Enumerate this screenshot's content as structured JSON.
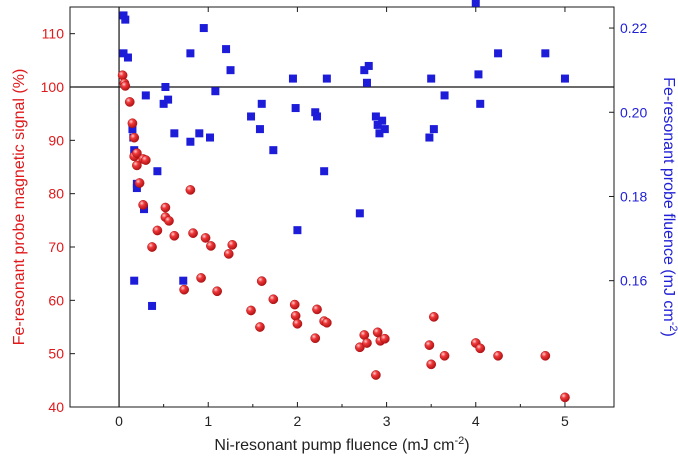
{
  "chart_data": {
    "type": "scatter",
    "title": "",
    "xlabel": "Ni-resonant pump fluence (mJ cm",
    "xlabel_sup": "-2",
    "xlabel_close": ")",
    "ylabel_left": "Fe-resonant probe magnetic signal (%)",
    "ylabel_right": "Fe-resonant probe fluence (mJ cm",
    "ylabel_right_sup": "-2",
    "ylabel_right_close": ")",
    "xlim": [
      -0.55,
      5.55
    ],
    "ylim_left": [
      40,
      115
    ],
    "ylim_right": [
      0.13,
      0.225
    ],
    "x_ticks": [
      0,
      1,
      2,
      3,
      4,
      5
    ],
    "y_left_ticks": [
      40,
      50,
      60,
      70,
      80,
      90,
      100,
      110
    ],
    "y_right_ticks": [
      0.16,
      0.18,
      0.2,
      0.22
    ],
    "y_right_tick_labels": [
      "0.16",
      "0.18",
      "0.20",
      "0.22"
    ],
    "reference_lines": {
      "x": 0,
      "y_left": 100
    },
    "colors": {
      "magnetic": "#e31a1c",
      "fluence": "#1c1cd9",
      "left_axis": "#e0191b",
      "right_axis": "#1f1fd6"
    },
    "series": [
      {
        "axis": "left",
        "marker": "sphere",
        "points": [
          [
            0.04,
            102.2
          ],
          [
            0.06,
            100.7
          ],
          [
            0.07,
            100.2
          ],
          [
            0.12,
            97.2
          ],
          [
            0.15,
            93.2
          ],
          [
            0.17,
            90.5
          ],
          [
            0.17,
            87.0
          ],
          [
            0.2,
            87.6
          ],
          [
            0.2,
            85.3
          ],
          [
            0.23,
            82.0
          ],
          [
            0.27,
            86.5
          ],
          [
            0.3,
            86.3
          ],
          [
            0.27,
            77.9
          ],
          [
            0.37,
            70.0
          ],
          [
            0.43,
            73.1
          ],
          [
            0.52,
            75.6
          ],
          [
            0.52,
            77.4
          ],
          [
            0.56,
            74.9
          ],
          [
            0.62,
            72.1
          ],
          [
            0.73,
            62.0
          ],
          [
            0.8,
            80.7
          ],
          [
            0.83,
            72.6
          ],
          [
            0.92,
            64.2
          ],
          [
            0.97,
            71.7
          ],
          [
            1.03,
            70.2
          ],
          [
            1.1,
            61.7
          ],
          [
            1.23,
            68.7
          ],
          [
            1.27,
            70.4
          ],
          [
            1.48,
            58.1
          ],
          [
            1.58,
            55.0
          ],
          [
            1.6,
            63.6
          ],
          [
            1.73,
            60.2
          ],
          [
            1.97,
            59.2
          ],
          [
            1.98,
            57.1
          ],
          [
            2.0,
            55.6
          ],
          [
            2.2,
            52.9
          ],
          [
            2.22,
            58.3
          ],
          [
            2.3,
            56.1
          ],
          [
            2.33,
            55.8
          ],
          [
            2.7,
            51.2
          ],
          [
            2.75,
            53.5
          ],
          [
            2.78,
            52.0
          ],
          [
            2.88,
            46.0
          ],
          [
            2.9,
            54.0
          ],
          [
            2.93,
            52.4
          ],
          [
            2.98,
            52.8
          ],
          [
            3.48,
            51.6
          ],
          [
            3.5,
            48.0
          ],
          [
            3.53,
            56.9
          ],
          [
            3.65,
            49.6
          ],
          [
            4.0,
            52.0
          ],
          [
            4.05,
            51.0
          ],
          [
            4.25,
            49.6
          ],
          [
            4.78,
            49.6
          ],
          [
            5.0,
            41.8
          ]
        ]
      },
      {
        "axis": "right",
        "marker": "square",
        "points": [
          [
            0.05,
            0.223
          ],
          [
            0.07,
            0.222
          ],
          [
            0.05,
            0.214
          ],
          [
            0.1,
            0.213
          ],
          [
            0.15,
            0.196
          ],
          [
            0.16,
            0.194
          ],
          [
            0.17,
            0.191
          ],
          [
            0.2,
            0.183
          ],
          [
            0.2,
            0.182
          ],
          [
            0.17,
            0.16
          ],
          [
            0.28,
            0.177
          ],
          [
            0.3,
            0.204
          ],
          [
            0.37,
            0.154
          ],
          [
            0.43,
            0.186
          ],
          [
            0.5,
            0.202
          ],
          [
            0.52,
            0.206
          ],
          [
            0.55,
            0.203
          ],
          [
            0.62,
            0.195
          ],
          [
            0.72,
            0.16
          ],
          [
            0.8,
            0.214
          ],
          [
            0.8,
            0.193
          ],
          [
            0.9,
            0.195
          ],
          [
            0.95,
            0.22
          ],
          [
            1.02,
            0.194
          ],
          [
            1.08,
            0.205
          ],
          [
            1.2,
            0.215
          ],
          [
            1.25,
            0.21
          ],
          [
            1.48,
            0.199
          ],
          [
            1.58,
            0.196
          ],
          [
            1.6,
            0.202
          ],
          [
            1.73,
            0.191
          ],
          [
            1.95,
            0.208
          ],
          [
            1.98,
            0.201
          ],
          [
            2.0,
            0.172
          ],
          [
            2.2,
            0.2
          ],
          [
            2.22,
            0.199
          ],
          [
            2.3,
            0.186
          ],
          [
            2.33,
            0.208
          ],
          [
            2.7,
            0.176
          ],
          [
            2.75,
            0.21
          ],
          [
            2.78,
            0.207
          ],
          [
            2.8,
            0.211
          ],
          [
            2.88,
            0.199
          ],
          [
            2.9,
            0.197
          ],
          [
            2.92,
            0.195
          ],
          [
            2.95,
            0.198
          ],
          [
            2.98,
            0.196
          ],
          [
            3.48,
            0.194
          ],
          [
            3.5,
            0.208
          ],
          [
            3.53,
            0.196
          ],
          [
            3.65,
            0.204
          ],
          [
            4.0,
            0.226
          ],
          [
            4.03,
            0.209
          ],
          [
            4.05,
            0.202
          ],
          [
            4.25,
            0.214
          ],
          [
            4.78,
            0.214
          ],
          [
            5.0,
            0.208
          ]
        ]
      }
    ]
  }
}
